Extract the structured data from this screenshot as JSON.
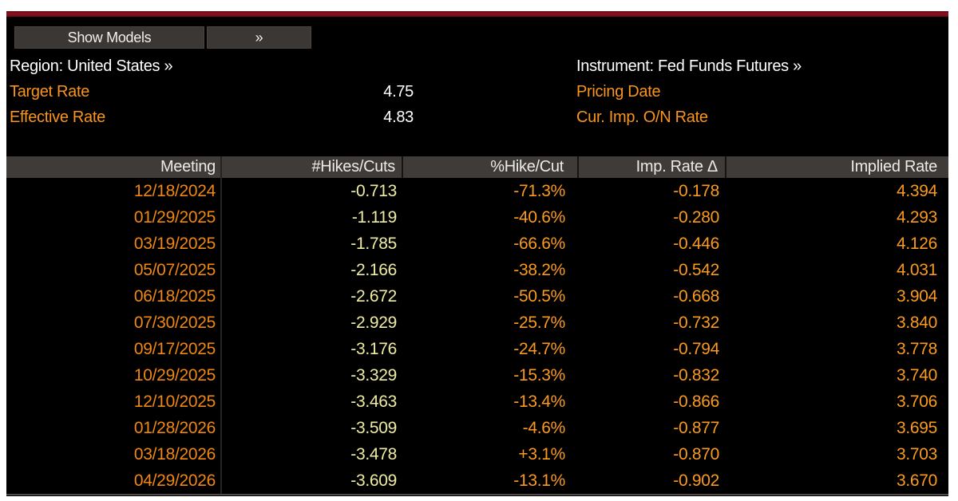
{
  "colors": {
    "background": "#000000",
    "frame": "#ffffff",
    "top_bar_red": "#8c1122",
    "header_bg": "#3e3b38",
    "button_bg": "#3a3734",
    "orange": "#fa9a1e",
    "date_orange": "#ef8711",
    "pale_yellow": "#efeca2",
    "white": "#ffffff"
  },
  "toolbar": {
    "show_models_label": "Show Models",
    "expand_label": "»"
  },
  "info": {
    "region_label": "Region: United States »",
    "instrument_label": "Instrument: Fed Funds Futures »",
    "target_rate_label": "Target Rate",
    "target_rate_value": "4.75",
    "effective_rate_label": "Effective Rate",
    "effective_rate_value": "4.83",
    "pricing_date_label": "Pricing Date",
    "pricing_date_value": "",
    "cur_imp_on_rate_label": "Cur. Imp. O/N Rate",
    "cur_imp_on_rate_value": ""
  },
  "table": {
    "columns": [
      "Meeting",
      "#Hikes/Cuts",
      "%Hike/Cut",
      "Imp. Rate Δ",
      "Implied Rate"
    ],
    "column_keys": [
      "meeting",
      "hikes-cuts",
      "hike-cut-pct",
      "imp-rate-delta",
      "implied-rate"
    ],
    "rows": [
      [
        "12/18/2024",
        "-0.713",
        "-71.3%",
        "-0.178",
        "4.394"
      ],
      [
        "01/29/2025",
        "-1.119",
        "-40.6%",
        "-0.280",
        "4.293"
      ],
      [
        "03/19/2025",
        "-1.785",
        "-66.6%",
        "-0.446",
        "4.126"
      ],
      [
        "05/07/2025",
        "-2.166",
        "-38.2%",
        "-0.542",
        "4.031"
      ],
      [
        "06/18/2025",
        "-2.672",
        "-50.5%",
        "-0.668",
        "3.904"
      ],
      [
        "07/30/2025",
        "-2.929",
        "-25.7%",
        "-0.732",
        "3.840"
      ],
      [
        "09/17/2025",
        "-3.176",
        "-24.7%",
        "-0.794",
        "3.778"
      ],
      [
        "10/29/2025",
        "-3.329",
        "-15.3%",
        "-0.832",
        "3.740"
      ],
      [
        "12/10/2025",
        "-3.463",
        "-13.4%",
        "-0.866",
        "3.706"
      ],
      [
        "01/28/2026",
        "-3.509",
        "-4.6%",
        "-0.877",
        "3.695"
      ],
      [
        "03/18/2026",
        "-3.478",
        "+3.1%",
        "-0.870",
        "3.703"
      ],
      [
        "04/29/2026",
        "-3.609",
        "-13.1%",
        "-0.902",
        "3.670"
      ]
    ]
  }
}
